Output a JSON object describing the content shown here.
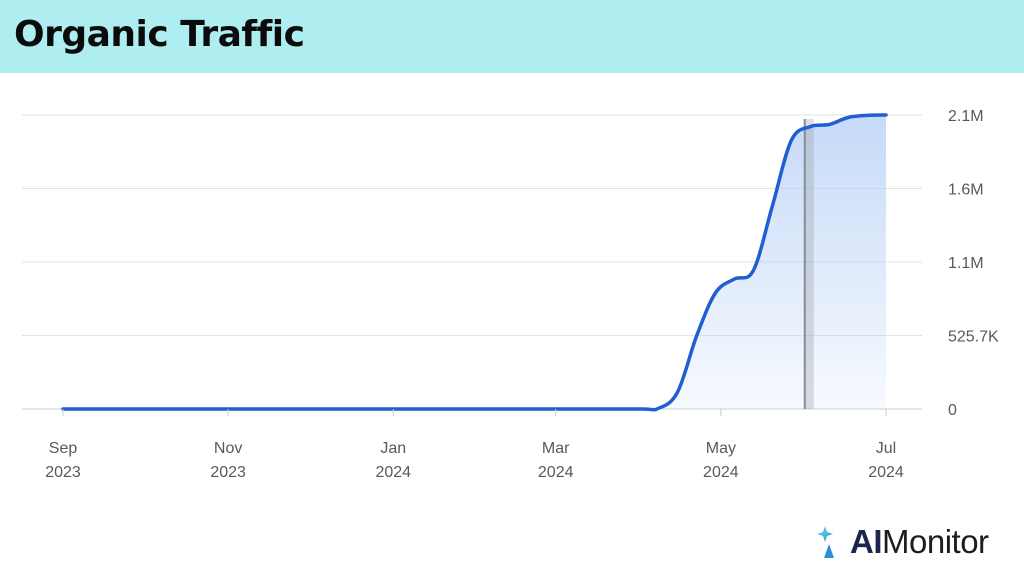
{
  "header": {
    "title": "Organic Traffic"
  },
  "colors": {
    "header_bg": "#aeeef0",
    "line": "#1f5fd1",
    "fill": "#bcd3f6",
    "marker": "#8a8e94"
  },
  "logo": {
    "prefix": "AI",
    "suffix": "Monitor",
    "icon": "sparkle-icon"
  },
  "chart_data": {
    "type": "area",
    "title": "Organic Traffic",
    "xlabel": "",
    "ylabel": "",
    "x_ticks": [
      {
        "date": "2023-09-01",
        "month": "Sep",
        "year": "2023"
      },
      {
        "date": "2023-11-01",
        "month": "Nov",
        "year": "2023"
      },
      {
        "date": "2024-01-01",
        "month": "Jan",
        "year": "2024"
      },
      {
        "date": "2024-03-01",
        "month": "Mar",
        "year": "2024"
      },
      {
        "date": "2024-05-01",
        "month": "May",
        "year": "2024"
      },
      {
        "date": "2024-07-01",
        "month": "Jul",
        "year": "2024"
      }
    ],
    "y_ticks": [
      {
        "value": 0,
        "label": "0"
      },
      {
        "value": 525700,
        "label": "525.7K"
      },
      {
        "value": 1051400,
        "label": "1.1M"
      },
      {
        "value": 1577100,
        "label": "1.6M"
      },
      {
        "value": 2102800,
        "label": "2.1M"
      }
    ],
    "ylim": [
      0,
      2102800
    ],
    "xlim": [
      "2023-09-01",
      "2024-07-01"
    ],
    "grid": true,
    "marker_date": "2024-06-01",
    "series": [
      {
        "values": [
          [
            "2023-09-01",
            0
          ],
          [
            "2023-10-01",
            0
          ],
          [
            "2023-11-01",
            0
          ],
          [
            "2023-12-01",
            0
          ],
          [
            "2024-01-01",
            0
          ],
          [
            "2024-02-01",
            0
          ],
          [
            "2024-03-01",
            0
          ],
          [
            "2024-04-01",
            0
          ],
          [
            "2024-04-08",
            5000
          ],
          [
            "2024-04-15",
            120000
          ],
          [
            "2024-04-22",
            520000
          ],
          [
            "2024-04-29",
            830000
          ],
          [
            "2024-05-06",
            930000
          ],
          [
            "2024-05-13",
            990000
          ],
          [
            "2024-05-20",
            1450000
          ],
          [
            "2024-05-27",
            1920000
          ],
          [
            "2024-06-03",
            2020000
          ],
          [
            "2024-06-10",
            2035000
          ],
          [
            "2024-06-17",
            2085000
          ],
          [
            "2024-06-24",
            2100000
          ],
          [
            "2024-07-01",
            2102800
          ]
        ]
      }
    ]
  }
}
